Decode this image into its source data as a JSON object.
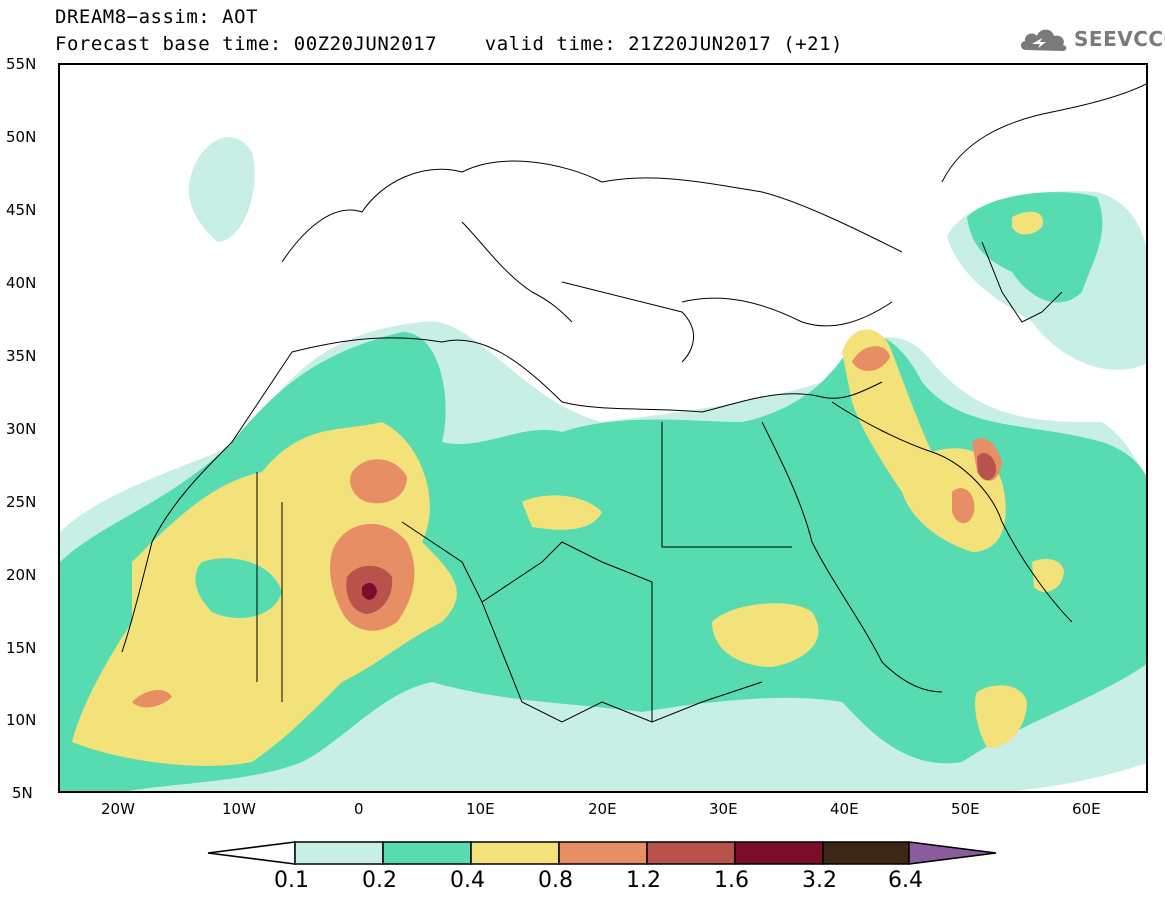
{
  "header": {
    "line1": "DREAM8−assim: AOT",
    "line2": "Forecast base time: 00Z20JUN2017    valid time: 21Z20JUN2017 (+21)"
  },
  "logo": {
    "text": "SEEVCCC",
    "icon": "cloud-icon",
    "color": "#7a7a7a"
  },
  "map": {
    "lat_labels": [
      "55N",
      "50N",
      "45N",
      "40N",
      "35N",
      "30N",
      "25N",
      "20N",
      "15N",
      "10N",
      "5N"
    ],
    "lon_labels": [
      "20W",
      "10W",
      "0",
      "10E",
      "20E",
      "30E",
      "40E",
      "50E",
      "60E"
    ],
    "lat_range": [
      5,
      55
    ],
    "lon_range": [
      -25,
      65
    ]
  },
  "colorbar": {
    "levels": [
      "0.1",
      "0.2",
      "0.4",
      "0.8",
      "1.2",
      "1.6",
      "3.2",
      "6.4"
    ],
    "colors": [
      "#c8efe6",
      "#56dcb0",
      "#f3e27a",
      "#e88e64",
      "#b8524a",
      "#7a0d28",
      "#3c2716"
    ],
    "under_color": "#ffffff",
    "over_color": "#8a5c9e"
  }
}
